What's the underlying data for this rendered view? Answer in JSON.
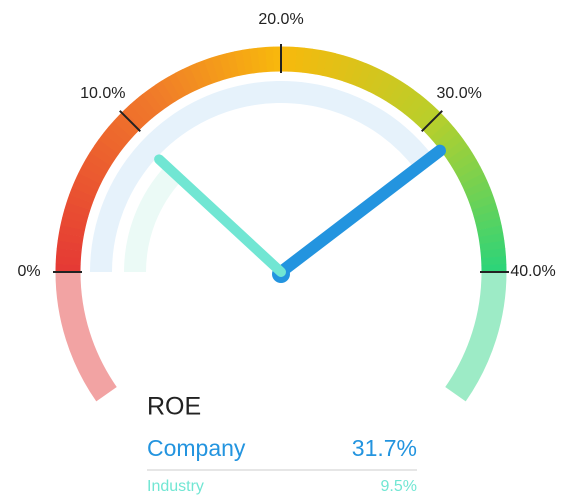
{
  "chart_data": {
    "type": "gauge",
    "title": "ROE",
    "ylim": [
      0,
      40
    ],
    "yticks": [
      {
        "value": 0,
        "label": "0%"
      },
      {
        "value": 10,
        "label": "10.0%"
      },
      {
        "value": 20,
        "label": "20.0%"
      },
      {
        "value": 30,
        "label": "30.0%"
      },
      {
        "value": 40,
        "label": "40.0%"
      }
    ],
    "series": [
      {
        "name": "Company",
        "color": "#2394df",
        "values": [
          31.7
        ],
        "value_labels": [
          "31.7%"
        ]
      },
      {
        "name": "Industry",
        "color": "#71e6d3",
        "values": [
          9.5
        ],
        "value_labels": [
          "9.5%"
        ]
      }
    ]
  }
}
